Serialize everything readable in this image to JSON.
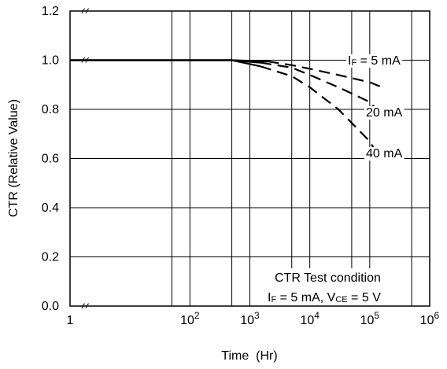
{
  "chart_data": {
    "type": "line",
    "xlabel": "Time  (Hr)",
    "ylabel": "CTR (Relative Value)",
    "x_scale": "log",
    "xlim": [
      1,
      1000000
    ],
    "ylim": [
      0.0,
      1.2
    ],
    "x_ticks": [
      {
        "value": 1,
        "base": "1",
        "exp": ""
      },
      {
        "value": 100,
        "base": "10",
        "exp": "2"
      },
      {
        "value": 1000,
        "base": "10",
        "exp": "3"
      },
      {
        "value": 10000,
        "base": "10",
        "exp": "4"
      },
      {
        "value": 100000,
        "base": "10",
        "exp": "5"
      },
      {
        "value": 1000000,
        "base": "10",
        "exp": "6"
      }
    ],
    "x_gridlines": [
      50,
      100,
      500,
      1000,
      5000,
      10000,
      50000,
      100000,
      500000
    ],
    "y_ticks": [
      "0.0",
      "0.2",
      "0.4",
      "0.6",
      "0.8",
      "1.0",
      "1.2"
    ],
    "y_tick_values": [
      0.0,
      0.2,
      0.4,
      0.6,
      0.8,
      1.0,
      1.2
    ],
    "grid": true,
    "axis_break_marks": true,
    "series": [
      {
        "name_prefix": "I",
        "name_sub": "F",
        "name_suffix": " = 5 mA",
        "points": [
          [
            1,
            1.0
          ],
          [
            500,
            1.0
          ],
          [
            2000,
            0.995
          ],
          [
            5000,
            0.98
          ],
          [
            10000,
            0.965
          ],
          [
            30000,
            0.94
          ],
          [
            100000,
            0.91
          ],
          [
            160000,
            0.89
          ]
        ]
      },
      {
        "name_prefix": "",
        "name_sub": "",
        "name_suffix": "20 mA",
        "points": [
          [
            1,
            1.0
          ],
          [
            500,
            1.0
          ],
          [
            1500,
            0.99
          ],
          [
            5000,
            0.97
          ],
          [
            10000,
            0.94
          ],
          [
            30000,
            0.89
          ],
          [
            100000,
            0.83
          ],
          [
            140000,
            0.79
          ]
        ]
      },
      {
        "name_prefix": "",
        "name_sub": "",
        "name_suffix": "40 mA",
        "points": [
          [
            1,
            1.0
          ],
          [
            500,
            1.0
          ],
          [
            1500,
            0.975
          ],
          [
            5000,
            0.935
          ],
          [
            10000,
            0.89
          ],
          [
            30000,
            0.8
          ],
          [
            100000,
            0.67
          ],
          [
            140000,
            0.61
          ]
        ]
      }
    ],
    "annotation": {
      "line1": "CTR Test condition",
      "line2_a": "I",
      "line2_a_sub": "F",
      "line2_b": " = 5 mA, V",
      "line2_b_sub": "CE",
      "line2_c": " = 5 V"
    }
  }
}
